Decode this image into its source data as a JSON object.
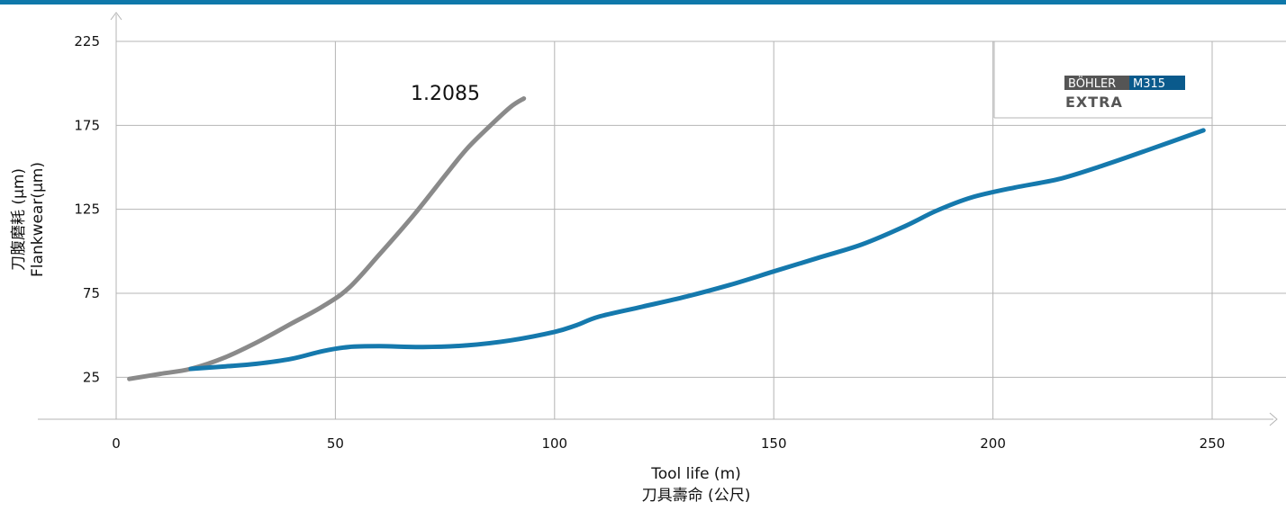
{
  "chart_data": {
    "type": "line",
    "xlabel_line1": "Tool life (m)",
    "xlabel_line2": "刀具壽命 (公尺)",
    "ylabel_line1": "刀腹磨耗 (µm)",
    "ylabel_line2": "Flankwear(µm)",
    "xlim": [
      0,
      250
    ],
    "ylim": [
      0,
      225
    ],
    "x_ticks": [
      0,
      50,
      100,
      150,
      200,
      250
    ],
    "y_ticks": [
      25,
      75,
      125,
      175,
      225
    ],
    "grid": true,
    "series": [
      {
        "name": "1.2085",
        "color": "#8a8a8a",
        "x": [
          3,
          10,
          17,
          25,
          33,
          40,
          47,
          53,
          60,
          68,
          75,
          80,
          85,
          90,
          93
        ],
        "y": [
          24,
          27,
          30,
          37,
          47,
          57,
          67,
          78,
          98,
          122,
          145,
          161,
          174,
          186,
          191
        ]
      },
      {
        "name": "BÖHLER M315 EXTRA",
        "color": "#1579ad",
        "x": [
          17,
          25,
          32,
          40,
          47,
          53,
          60,
          70,
          80,
          90,
          100,
          105,
          110,
          120,
          130,
          140,
          150,
          160,
          170,
          180,
          187,
          195,
          205,
          215,
          225,
          235,
          248
        ],
        "y": [
          30,
          31.5,
          33,
          36,
          40.5,
          43,
          43.5,
          43,
          44,
          47,
          52,
          56,
          61,
          67,
          73,
          80,
          88,
          96,
          104,
          115,
          124,
          132,
          138,
          143,
          151,
          160,
          172
        ]
      }
    ]
  },
  "labels": {
    "grey_curve": "1.2085",
    "legend_brand": "BÖHLER",
    "legend_grade": "M315",
    "legend_line2": "EXTRA"
  },
  "colors": {
    "accent_bar": "#0f78aa",
    "grid": "#b4b4b4",
    "logo_dark": "#555555",
    "logo_blue": "#0a5a8c"
  }
}
